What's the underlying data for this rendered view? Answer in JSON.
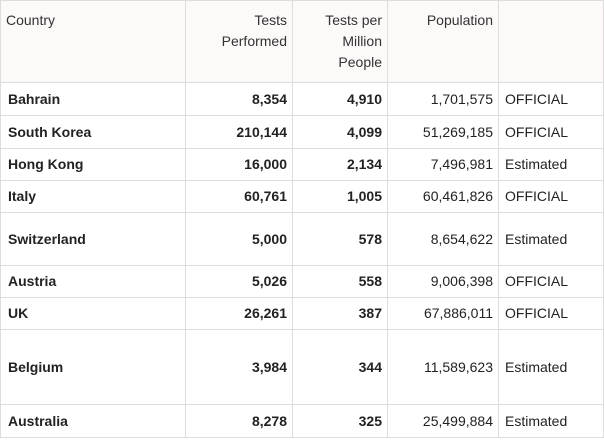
{
  "table": {
    "headers": [
      "Country",
      "Tests Performed",
      "Tests per Million People",
      "Population",
      ""
    ],
    "rows": [
      {
        "country": "Bahrain",
        "tests": "8,354",
        "per_million": "4,910",
        "population": "1,701,575",
        "status": "OFFICIAL"
      },
      {
        "country": "South Korea",
        "tests": "210,144",
        "per_million": "4,099",
        "population": "51,269,185",
        "status": "OFFICIAL"
      },
      {
        "country": "Hong Kong",
        "tests": "16,000",
        "per_million": "2,134",
        "population": "7,496,981",
        "status": "Estimated"
      },
      {
        "country": "Italy",
        "tests": "60,761",
        "per_million": "1,005",
        "population": "60,461,826",
        "status": "OFFICIAL"
      },
      {
        "country": "Switzerland",
        "tests": "5,000",
        "per_million": "578",
        "population": "8,654,622",
        "status": "Estimated"
      },
      {
        "country": "Austria",
        "tests": "5,026",
        "per_million": "558",
        "population": "9,006,398",
        "status": "OFFICIAL"
      },
      {
        "country": "UK",
        "tests": "26,261",
        "per_million": "387",
        "population": "67,886,011",
        "status": "OFFICIAL"
      },
      {
        "country": "Belgium",
        "tests": "3,984",
        "per_million": "344",
        "population": "11,589,623",
        "status": "Estimated"
      },
      {
        "country": "Australia",
        "tests": "8,278",
        "per_million": "325",
        "population": "25,499,884",
        "status": "Estimated"
      }
    ]
  }
}
